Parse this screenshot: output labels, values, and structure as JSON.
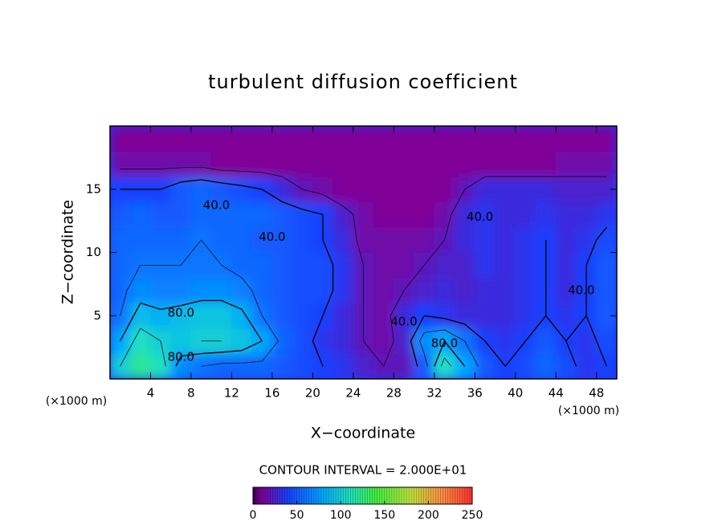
{
  "chart_data": {
    "type": "contour",
    "title": "turbulent diffusion coefficient",
    "x_label": "X−coordinate",
    "y_label": "Z−coordinate",
    "x_unit": "(×1000 m)",
    "y_unit": "(×1000 m)",
    "xlim": [
      0,
      50
    ],
    "ylim": [
      0,
      20
    ],
    "xticks": [
      4,
      8,
      12,
      16,
      20,
      24,
      28,
      32,
      36,
      40,
      44,
      48
    ],
    "yticks": [
      5,
      10,
      15
    ],
    "contour_interval": {
      "value": 20,
      "label": "CONTOUR INTERVAL = 2.000E+01"
    },
    "field": {
      "x": [
        1,
        3,
        5,
        7,
        9,
        11,
        13,
        15,
        17,
        19,
        21,
        23,
        25,
        27,
        29,
        31,
        33,
        35,
        37,
        39,
        41,
        43,
        45,
        47,
        49
      ],
      "y": [
        1,
        3,
        5,
        7,
        9,
        11,
        13,
        15,
        17,
        19
      ],
      "z": [
        [
          100,
          120,
          110,
          70,
          60,
          55,
          55,
          55,
          50,
          45,
          40,
          35,
          25,
          20,
          20,
          50,
          110,
          80,
          50,
          40,
          45,
          55,
          45,
          35,
          40
        ],
        [
          80,
          110,
          100,
          95,
          100,
          100,
          95,
          80,
          55,
          45,
          35,
          30,
          20,
          15,
          25,
          70,
          80,
          60,
          40,
          35,
          40,
          50,
          40,
          35,
          45
        ],
        [
          60,
          90,
          85,
          90,
          95,
          95,
          85,
          60,
          50,
          45,
          40,
          30,
          20,
          15,
          30,
          40,
          35,
          30,
          30,
          30,
          35,
          40,
          35,
          40,
          50
        ],
        [
          55,
          70,
          65,
          65,
          70,
          70,
          65,
          55,
          50,
          45,
          45,
          35,
          20,
          15,
          20,
          25,
          30,
          25,
          30,
          30,
          35,
          40,
          30,
          40,
          50
        ],
        [
          55,
          60,
          60,
          60,
          60,
          60,
          55,
          55,
          50,
          45,
          45,
          35,
          20,
          15,
          15,
          20,
          25,
          25,
          35,
          30,
          35,
          40,
          30,
          40,
          50
        ],
        [
          55,
          55,
          55,
          55,
          60,
          55,
          55,
          50,
          50,
          45,
          40,
          30,
          15,
          15,
          15,
          15,
          20,
          30,
          35,
          30,
          35,
          40,
          30,
          35,
          45
        ],
        [
          50,
          55,
          50,
          50,
          55,
          55,
          55,
          55,
          50,
          45,
          40,
          25,
          15,
          10,
          10,
          10,
          15,
          30,
          35,
          30,
          30,
          35,
          30,
          30,
          35
        ],
        [
          40,
          40,
          40,
          50,
          55,
          50,
          45,
          40,
          30,
          20,
          15,
          10,
          10,
          10,
          10,
          10,
          10,
          20,
          30,
          30,
          30,
          30,
          25,
          25,
          25
        ],
        [
          15,
          15,
          15,
          15,
          15,
          10,
          10,
          10,
          10,
          10,
          10,
          10,
          10,
          10,
          10,
          10,
          10,
          10,
          10,
          10,
          10,
          10,
          15,
          15,
          15
        ],
        [
          10,
          10,
          10,
          10,
          10,
          10,
          10,
          10,
          10,
          10,
          10,
          10,
          10,
          10,
          10,
          10,
          10,
          10,
          10,
          10,
          10,
          10,
          10,
          10,
          10
        ]
      ]
    },
    "contour_labels": [
      {
        "value": 40,
        "label": "40.0",
        "x": 10.5,
        "z": 13.7
      },
      {
        "value": 40,
        "label": "40.0",
        "x": 16,
        "z": 11.2
      },
      {
        "value": 40,
        "label": "40.0",
        "x": 36.5,
        "z": 12.8
      },
      {
        "value": 40,
        "label": "40.0",
        "x": 46.5,
        "z": 7
      },
      {
        "value": 40,
        "label": "40.0",
        "x": 29,
        "z": 4.5
      },
      {
        "value": 80,
        "label": "80.0",
        "x": 7,
        "z": 5.2
      },
      {
        "value": 80,
        "label": "80.0",
        "x": 7,
        "z": 1.7
      },
      {
        "value": 80,
        "label": "80.0",
        "x": 33,
        "z": 2.8
      }
    ],
    "colorbar": {
      "clim": [
        0,
        250
      ],
      "ticks": [
        0,
        50,
        100,
        150,
        200,
        250
      ],
      "colormap": [
        [
          0,
          "#3a0050"
        ],
        [
          10,
          "#800098"
        ],
        [
          40,
          "#1840ff"
        ],
        [
          80,
          "#00a8ff"
        ],
        [
          110,
          "#20e0c0"
        ],
        [
          140,
          "#40f040"
        ],
        [
          180,
          "#c0e040"
        ],
        [
          215,
          "#ff9040"
        ],
        [
          250,
          "#ff3030"
        ]
      ]
    }
  }
}
